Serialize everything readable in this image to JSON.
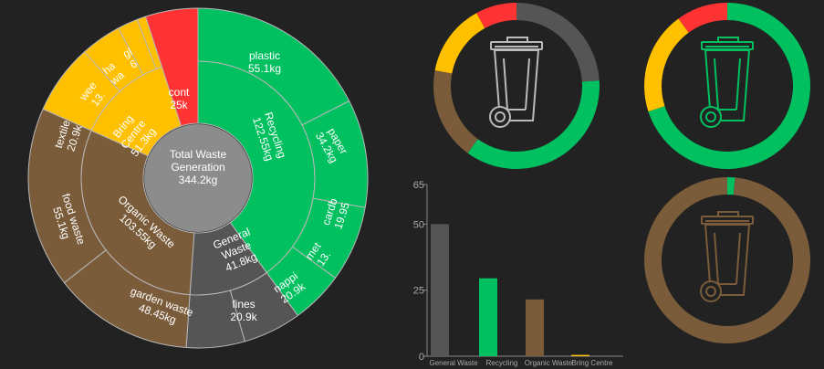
{
  "colors": {
    "background": "#222222",
    "recycling": "#00c060",
    "organic": "#7a5c3a",
    "general": "#555555",
    "bring_centre": "#ffc000",
    "contamination": "#ff3333",
    "center": "#8c8c8c"
  },
  "chart_data": [
    {
      "type": "sunburst",
      "center": {
        "line1": "Total Waste",
        "line2": "Generation",
        "value": "344.2kg"
      },
      "segments": [
        {
          "name": "Recycling",
          "label": "Recycling",
          "value_label": "122.55kg",
          "color": "#00c060",
          "children": [
            {
              "label": "plastic",
              "value_label": "55.1kg"
            },
            {
              "label": "paper",
              "value_label": "34.2kg"
            },
            {
              "label": "cardb",
              "value_label": "19.95"
            },
            {
              "label": "met",
              "value_label": "13."
            }
          ]
        },
        {
          "name": "General Waste",
          "label": "General Waste",
          "value_label": "41.8kg",
          "color": "#555555",
          "children": [
            {
              "label": "nappi",
              "value_label": "20.9k"
            },
            {
              "label": "fines",
              "value_label": "20.9k"
            }
          ]
        },
        {
          "name": "Organic Waste",
          "label": "Organic Waste",
          "value_label": "103.55kg",
          "color": "#7a5c3a",
          "children": [
            {
              "label": "garden waste",
              "value_label": "48.45kg"
            },
            {
              "label": "food waste",
              "value_label": "55.1kg"
            }
          ]
        },
        {
          "name": "Bring Centre",
          "label": "Bring Centre",
          "value_label": "51.3kg",
          "color": "#ffc000",
          "children": [
            {
              "label": "textile",
              "value_label": "20.9k"
            },
            {
              "label": "wee",
              "value_label": "13."
            },
            {
              "label": "ha",
              "value_label": "wa"
            },
            {
              "label": "gl",
              "value_label": "6"
            }
          ]
        },
        {
          "name": "Contamination",
          "label": "cont",
          "value_label": "25k",
          "color": "#ff3333",
          "children": []
        }
      ]
    },
    {
      "type": "bar",
      "categories": [
        "General Waste",
        "Recycling",
        "Organic Waste",
        "Bring Centre"
      ],
      "values": [
        50,
        29.5,
        21.5,
        0.5
      ],
      "colors": [
        "#555555",
        "#00c060",
        "#7a5c3a",
        "#ffc000"
      ],
      "yticks": [
        0,
        25,
        50,
        65
      ],
      "ylim": [
        0,
        65
      ]
    },
    {
      "type": "pie",
      "variant": "donut",
      "slices": [
        {
          "color": "#555555",
          "value": 24
        },
        {
          "color": "#00c060",
          "value": 36
        },
        {
          "color": "#7a5c3a",
          "value": 18
        },
        {
          "color": "#ffc000",
          "value": 14
        },
        {
          "color": "#ff3333",
          "value": 8
        }
      ]
    },
    {
      "type": "pie",
      "variant": "donut",
      "slices": [
        {
          "color": "#00c060",
          "value": 70
        },
        {
          "color": "#ffc000",
          "value": 20
        },
        {
          "color": "#ff3333",
          "value": 10
        }
      ]
    },
    {
      "type": "pie",
      "variant": "donut",
      "slices": [
        {
          "color": "#00c060",
          "value": 1.5
        },
        {
          "color": "#7a5c3a",
          "value": 98.5
        }
      ]
    }
  ]
}
